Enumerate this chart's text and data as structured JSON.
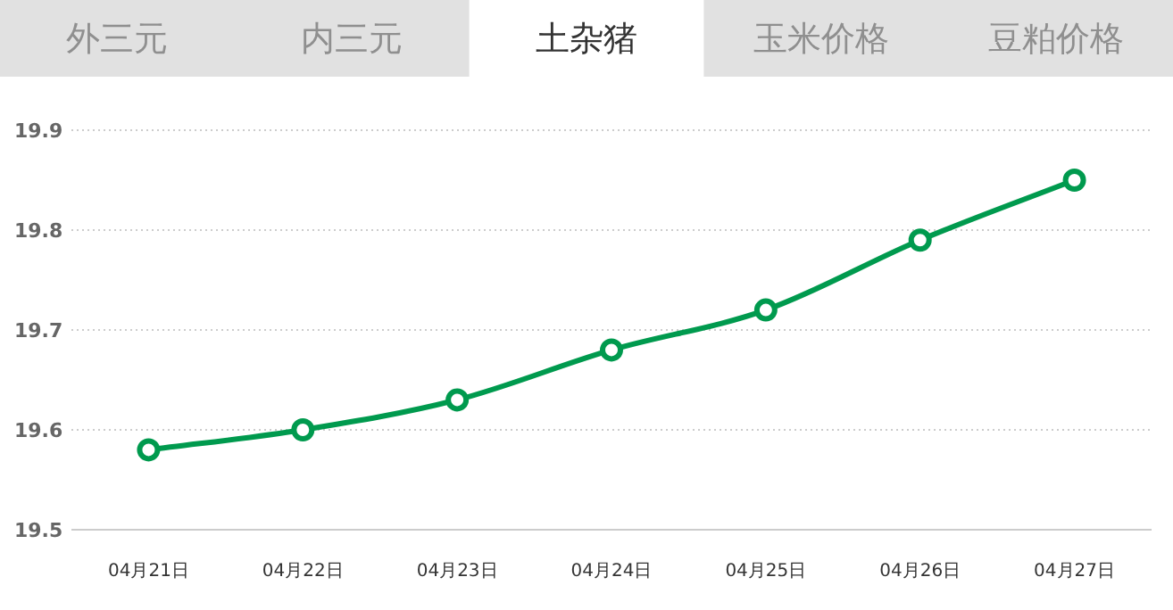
{
  "chart_data": {
    "type": "line",
    "title": "土杂猪",
    "annotations": [
      "外三元",
      "内三元",
      "玉米价格",
      "豆粕价格"
    ],
    "categories": [
      "04月21日",
      "04月22日",
      "04月23日",
      "04月24日",
      "04月25日",
      "04月26日",
      "04月27日"
    ],
    "series": [
      {
        "color": "#009a4e",
        "values": [
          19.58,
          19.6,
          19.63,
          19.68,
          19.72,
          19.79,
          19.85
        ]
      }
    ],
    "ylim": [
      19.5,
      19.9
    ],
    "yticks": [
      19.5,
      19.6,
      19.7,
      19.8,
      19.9
    ],
    "grid": "y",
    "marker": "circle",
    "line_style": "solid"
  }
}
